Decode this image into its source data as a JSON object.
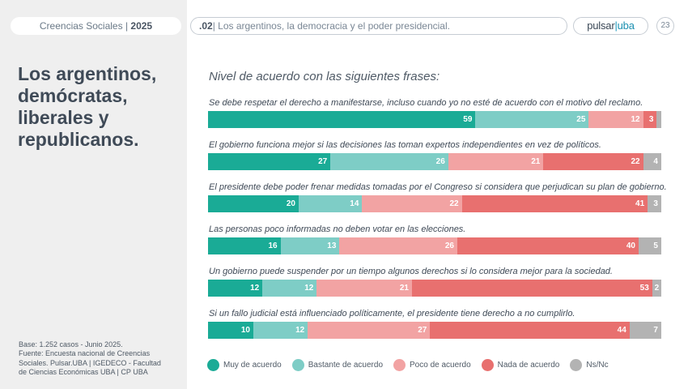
{
  "header": {
    "left_prefix": "Creencias Sociales | ",
    "left_year": "2025",
    "section_number": ".02",
    "section_title": "| Los argentinos, la democracia y el poder presidencial.",
    "logo_pulsar": "pulsar",
    "logo_bar": "|",
    "logo_uba": "uba",
    "page_number": "23"
  },
  "sidebar": {
    "title_lines": [
      "Los argentinos,",
      "demócratas,",
      "liberales y",
      "republicanos."
    ],
    "source_lines": [
      "Base: 1.252 casos - Junio 2025.",
      "Fuente: Encuesta nacional de Creencias",
      "Sociales. Pulsar.UBA | IGEDECO - Facultad",
      "de Ciencias Económicas UBA | CP UBA"
    ]
  },
  "chart_data": {
    "type": "bar",
    "orientation": "horizontal-stacked-100",
    "title": "Nivel de acuerdo con las siguientes frases:",
    "categories": [
      "Se debe respetar el derecho a manifestarse, incluso cuando yo no esté de acuerdo con el motivo del reclamo.",
      "El gobierno funciona mejor si las decisiones las toman expertos independientes en vez de políticos.",
      "El presidente debe poder frenar medidas tomadas por el Congreso si considera que perjudican su plan de gobierno.",
      "Las personas poco informadas no deben votar en las elecciones.",
      "Un gobierno puede suspender por un tiempo algunos derechos si lo considera mejor para la sociedad.",
      "Si un fallo judicial está influenciado políticamente, el presidente tiene derecho a no cumplirlo."
    ],
    "series": [
      {
        "name": "Muy de acuerdo",
        "color": "#1aab96",
        "values": [
          59,
          27,
          20,
          16,
          12,
          10
        ]
      },
      {
        "name": "Bastante de acuerdo",
        "color": "#7ecdc6",
        "values": [
          25,
          26,
          14,
          13,
          12,
          12
        ]
      },
      {
        "name": "Poco de acuerdo",
        "color": "#f2a3a3",
        "values": [
          12,
          21,
          22,
          26,
          21,
          27
        ]
      },
      {
        "name": "Nada de acuerdo",
        "color": "#e8706f",
        "values": [
          3,
          22,
          41,
          40,
          53,
          44
        ]
      },
      {
        "name": "Ns/Nc",
        "color": "#b3b3b3",
        "values": [
          1,
          4,
          3,
          5,
          2,
          7
        ]
      }
    ],
    "value_labels": [
      [
        "59",
        "25",
        "12",
        "3",
        ""
      ],
      [
        "27",
        "26",
        "21",
        "22",
        "4"
      ],
      [
        "20",
        "14",
        "22",
        "41",
        "3"
      ],
      [
        "16",
        "13",
        "26",
        "40",
        "5"
      ],
      [
        "12",
        "12",
        "21",
        "53",
        "2"
      ],
      [
        "10",
        "12",
        "27",
        "44",
        "7"
      ]
    ],
    "legend_position": "bottom"
  }
}
